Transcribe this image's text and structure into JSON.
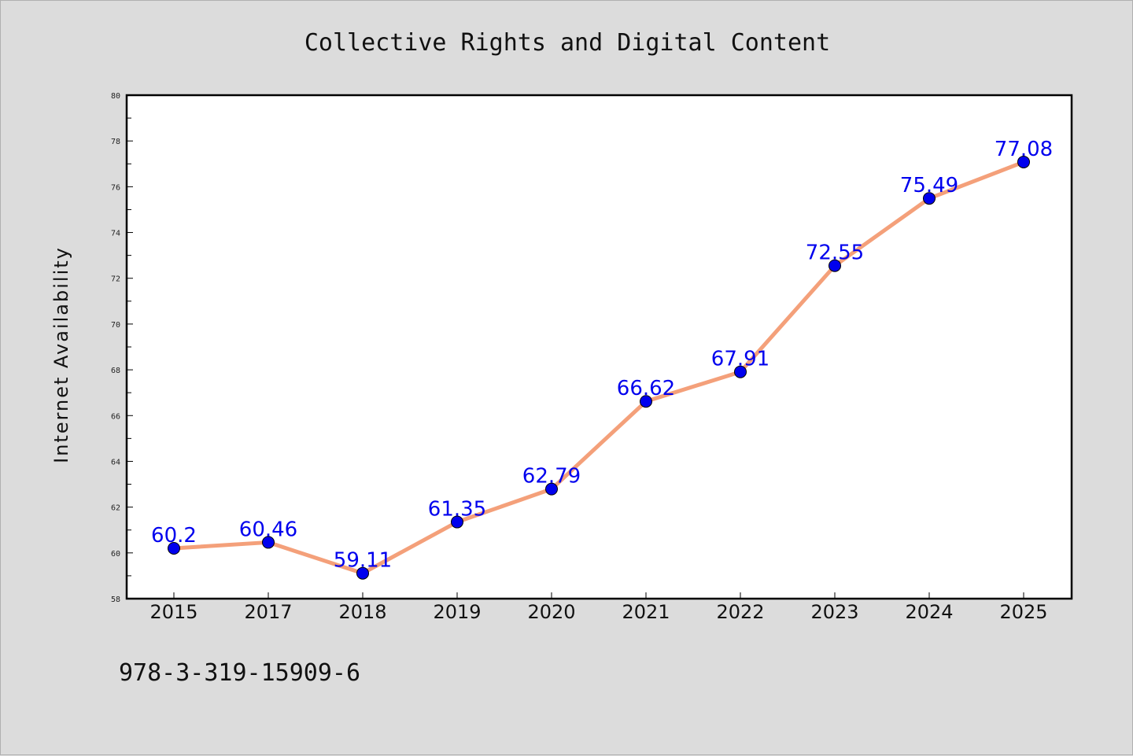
{
  "chart_data": {
    "type": "line",
    "title": "Collective Rights and Digital Content",
    "xlabel": "",
    "ylabel": "Internet Availability",
    "categories": [
      "2015",
      "2017",
      "2018",
      "2019",
      "2020",
      "2021",
      "2022",
      "2023",
      "2024",
      "2025"
    ],
    "series": [
      {
        "values": [
          60.2,
          60.46,
          59.11,
          61.35,
          62.79,
          66.62,
          67.91,
          72.55,
          75.49,
          77.08
        ],
        "labels": [
          "60.2",
          "60.46",
          "59.11",
          "61.35",
          "62.79",
          "66.62",
          "67.91",
          "72.55",
          "75.49",
          "77.08"
        ],
        "line_color": "#f4a07a",
        "marker_color": "#0000ee"
      }
    ],
    "ylim": [
      58,
      80
    ],
    "yticks": [
      "58",
      "60",
      "62",
      "64",
      "66",
      "68",
      "70",
      "72",
      "74",
      "76",
      "78",
      "80"
    ],
    "grid": false,
    "legend": "none"
  },
  "footer": {
    "text": "978-3-319-15909-6"
  }
}
